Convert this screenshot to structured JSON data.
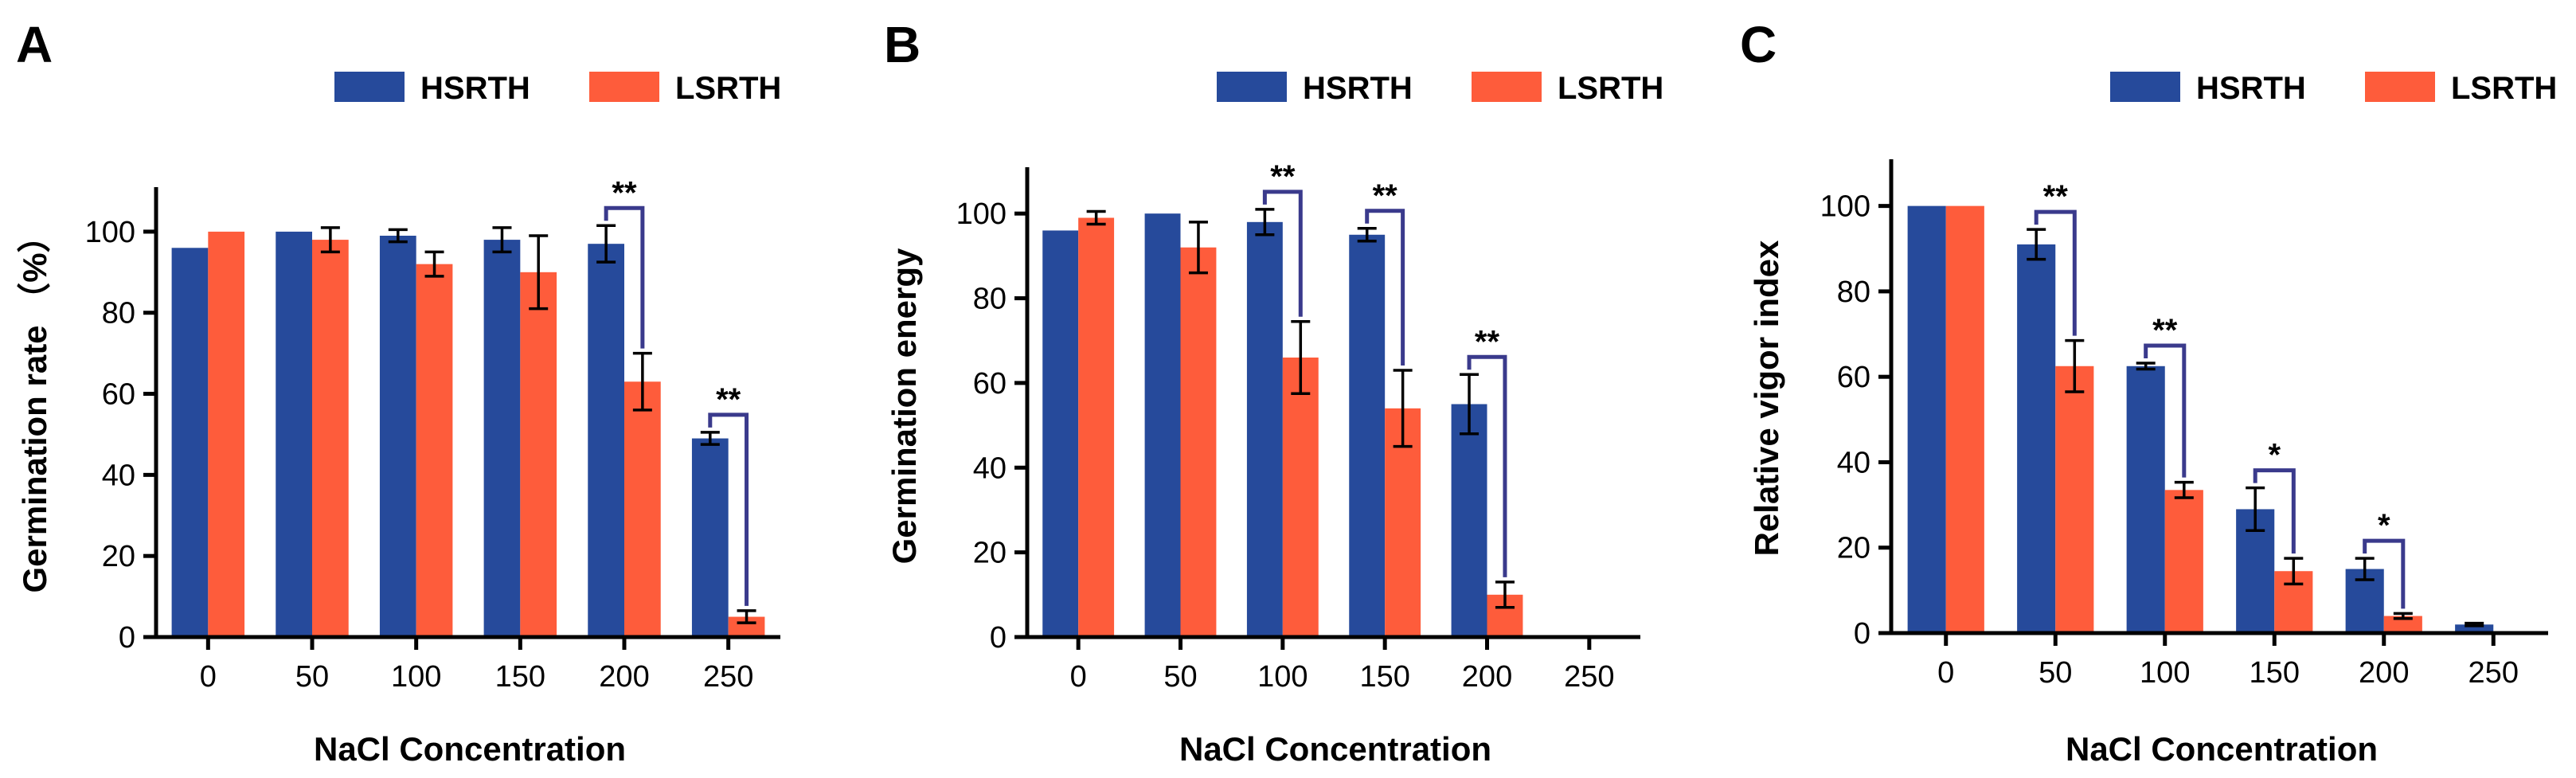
{
  "colors": {
    "HSRTH": "#264a9b",
    "LSRTH": "#fe5c3b",
    "bracket": "#3a3a8c"
  },
  "legend": [
    "HSRTH",
    "LSRTH"
  ],
  "chart_data": [
    {
      "panel": "A",
      "type": "bar",
      "categories": [
        "0",
        "50",
        "100",
        "150",
        "200",
        "250"
      ],
      "series": [
        {
          "name": "HSRTH",
          "values": [
            96,
            100,
            99,
            98,
            97,
            49
          ],
          "errors": [
            0,
            0,
            1.5,
            3,
            4.5,
            1.5
          ]
        },
        {
          "name": "LSRTH",
          "values": [
            100,
            98,
            92,
            90,
            63,
            5
          ],
          "errors": [
            0,
            3,
            3,
            9,
            7,
            1.5
          ]
        }
      ],
      "significance": [
        {
          "category": "200",
          "label": "**"
        },
        {
          "category": "250",
          "label": "**"
        }
      ],
      "ylabel": "Germination rate （%）",
      "xlabel": "NaCl Concentration",
      "ylim": [
        0,
        110
      ],
      "yticks": [
        0,
        20,
        40,
        60,
        80,
        100
      ]
    },
    {
      "panel": "B",
      "type": "bar",
      "categories": [
        "0",
        "50",
        "100",
        "150",
        "200",
        "250"
      ],
      "series": [
        {
          "name": "HSRTH",
          "values": [
            96,
            100,
            98,
            95,
            55,
            null
          ],
          "errors": [
            0,
            0,
            3,
            1.5,
            7,
            0
          ]
        },
        {
          "name": "LSRTH",
          "values": [
            99,
            92,
            66,
            54,
            10,
            null
          ],
          "errors": [
            1.5,
            6,
            8.5,
            9,
            3,
            0
          ]
        }
      ],
      "significance": [
        {
          "category": "100",
          "label": "**"
        },
        {
          "category": "150",
          "label": "**"
        },
        {
          "category": "200",
          "label": "**"
        }
      ],
      "ylabel": "Germination energy",
      "xlabel": "NaCl Concentration",
      "ylim": [
        0,
        110
      ],
      "yticks": [
        0,
        20,
        40,
        60,
        80,
        100
      ]
    },
    {
      "panel": "C",
      "type": "bar",
      "categories": [
        "0",
        "50",
        "100",
        "150",
        "200",
        "250"
      ],
      "series": [
        {
          "name": "HSRTH",
          "values": [
            100,
            91,
            62.5,
            29,
            15,
            2
          ],
          "errors": [
            0,
            3.5,
            0.7,
            5,
            2.5,
            0.3
          ]
        },
        {
          "name": "LSRTH",
          "values": [
            100,
            62.5,
            33.5,
            14.5,
            4,
            null
          ],
          "errors": [
            0,
            6,
            1.8,
            3,
            0.6,
            0
          ]
        }
      ],
      "significance": [
        {
          "category": "50",
          "label": "**"
        },
        {
          "category": "100",
          "label": "**"
        },
        {
          "category": "150",
          "label": "*"
        },
        {
          "category": "200",
          "label": "*"
        }
      ],
      "ylabel": "Relative vigor index",
      "xlabel": "NaCl Concentration",
      "ylim": [
        0,
        110
      ],
      "yticks": [
        0,
        20,
        40,
        60,
        80,
        100
      ]
    }
  ]
}
